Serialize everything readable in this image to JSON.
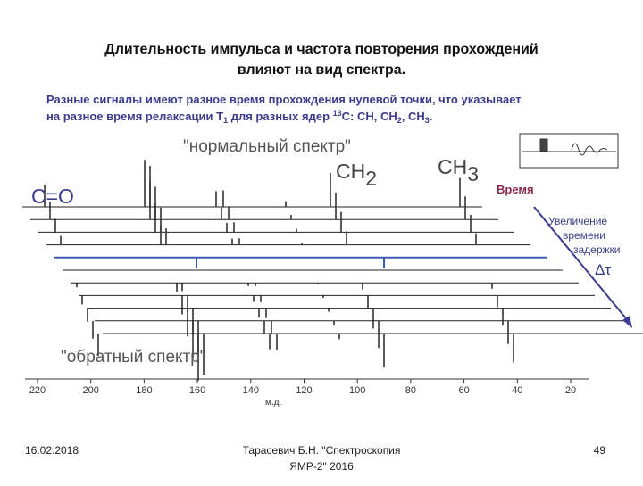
{
  "slide": {
    "title": [
      "Длительность  импульса и частота повторения прохождений",
      "влияют на вид спектра."
    ],
    "subtitle": {
      "line1": "Разные сигналы имеют разное время прохождения нулевой точки, что указывает",
      "line2": [
        "на разное время релаксации T",
        "1",
        " для разных ядер ",
        "13",
        "С: СН, СН",
        "2",
        ", СН",
        "3",
        "."
      ]
    },
    "figure": {
      "normal": "\"нормальный спектр\"",
      "inverse": "\"обратный спектр\"",
      "co": "С=О",
      "ch2": [
        "СН",
        "2"
      ],
      "ch3": [
        "СН",
        "3"
      ],
      "time": "Время",
      "delay": [
        "Увеличение",
        "времени",
        "задержки"
      ],
      "tau": "Δτ",
      "axis_ticks": [
        "220",
        "200",
        "180",
        "160",
        "140",
        "120",
        "100",
        "80",
        "60",
        "40",
        "20"
      ],
      "axis_unit": "м.д."
    },
    "footer": {
      "date": "16.02.2018",
      "author": [
        "Тарасевич Б.Н. \"Спектроскопия",
        "ЯМР-2\" 2016"
      ],
      "page": "49"
    }
  }
}
